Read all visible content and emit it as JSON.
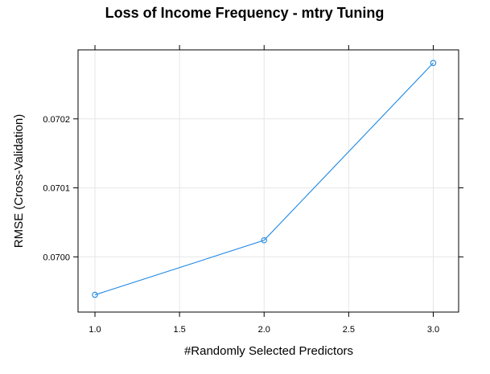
{
  "chart_data": {
    "type": "line",
    "title": "Loss of Income Frequency - mtry Tuning",
    "xlabel": "#Randomly Selected Predictors",
    "ylabel": "RMSE (Cross-Validation)",
    "x_ticks": [
      "1.0",
      "1.5",
      "2.0",
      "2.5",
      "3.0"
    ],
    "y_ticks": [
      "0.0700",
      "0.0701",
      "0.0702"
    ],
    "xlim": [
      0.9,
      3.15
    ],
    "ylim": [
      0.06992,
      0.0703
    ],
    "grid": true,
    "series": [
      {
        "color": "#1e88e5",
        "points": [
          {
            "x": 1.0,
            "y": 0.069945
          },
          {
            "x": 2.0,
            "y": 0.070024
          },
          {
            "x": 3.0,
            "y": 0.070281
          }
        ]
      }
    ]
  }
}
